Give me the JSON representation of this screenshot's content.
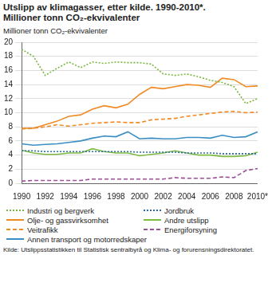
{
  "chart_data": {
    "type": "line",
    "title": "Utslipp av klimagasser, etter kilde. 1990-2010*.",
    "subtitle": "Millioner tonn CO₂-ekvivalenter",
    "y_label": "Millioner tonn CO₂-ekvivalenter",
    "source": "Kilde: Utslippsstatistikken til Statistisk sentralbyrå og Klima- og forurensningsdirektoratet.",
    "categories": [
      "1990",
      null,
      "1992",
      null,
      "1994",
      null,
      "1996",
      null,
      "1998",
      null,
      "2000",
      null,
      "2002",
      null,
      "2004",
      null,
      "2006",
      null,
      "2008",
      null,
      "2010*"
    ],
    "series": [
      {
        "name": "Industri og bergverk",
        "color": "#7ab63f",
        "line_style": "dotted",
        "values": [
          19.0,
          18.0,
          15.3,
          16.3,
          17.2,
          16.4,
          17.2,
          17.0,
          17.2,
          17.1,
          17.1,
          16.9,
          15.5,
          15.3,
          15.5,
          15.1,
          14.6,
          14.3,
          13.7,
          11.3,
          12.0
        ]
      },
      {
        "name": "Olje- og gassvirksomhet",
        "color": "#f08a24",
        "line_style": "solid",
        "values": [
          7.8,
          7.8,
          8.3,
          8.8,
          9.5,
          9.7,
          10.5,
          11.0,
          10.7,
          11.2,
          12.6,
          13.6,
          13.4,
          13.7,
          14.0,
          13.9,
          13.6,
          14.9,
          14.7,
          13.7,
          13.8
        ]
      },
      {
        "name": "Veitrafikk",
        "color": "#f08a24",
        "line_style": "dashed",
        "values": [
          7.7,
          7.8,
          8.0,
          8.3,
          8.1,
          8.3,
          8.5,
          8.6,
          8.7,
          8.6,
          8.6,
          9.0,
          9.1,
          9.2,
          9.5,
          9.7,
          9.9,
          10.1,
          10.2,
          10.0,
          10.1
        ]
      },
      {
        "name": "Annen transport og motorredskaper",
        "color": "#3b8ec4",
        "line_style": "solid",
        "values": [
          5.6,
          5.4,
          5.5,
          5.6,
          5.8,
          6.0,
          6.4,
          6.7,
          6.6,
          7.3,
          6.3,
          6.4,
          6.3,
          6.3,
          6.5,
          6.5,
          6.4,
          6.8,
          6.5,
          6.6,
          7.3
        ]
      },
      {
        "name": "Jordbruk",
        "color": "#2a6aa5",
        "line_style": "dotted",
        "values": [
          4.6,
          4.6,
          4.5,
          4.5,
          4.5,
          4.5,
          4.5,
          4.5,
          4.5,
          4.5,
          4.4,
          4.4,
          4.4,
          4.4,
          4.3,
          4.3,
          4.3,
          4.2,
          4.2,
          4.2,
          4.2
        ]
      },
      {
        "name": "Andre utslipp",
        "color": "#7dbb42",
        "line_style": "solid",
        "values": [
          4.7,
          4.3,
          4.1,
          4.1,
          4.3,
          4.3,
          4.9,
          4.5,
          4.3,
          4.3,
          3.9,
          4.1,
          4.3,
          4.6,
          4.3,
          4.0,
          4.0,
          3.8,
          3.8,
          3.9,
          4.4
        ]
      },
      {
        "name": "Energiforsyning",
        "color": "#9b4f96",
        "line_style": "dashed",
        "values": [
          0.3,
          0.4,
          0.4,
          0.4,
          0.4,
          0.4,
          0.6,
          0.6,
          0.6,
          0.6,
          0.6,
          0.6,
          0.6,
          0.8,
          0.7,
          0.7,
          0.7,
          0.9,
          0.8,
          1.8,
          2.1
        ]
      }
    ],
    "ylim": [
      0,
      20
    ],
    "yticks": [
      0,
      2,
      4,
      6,
      8,
      10,
      12,
      14,
      16,
      18,
      20
    ],
    "grid": true,
    "legend": "bottom"
  }
}
